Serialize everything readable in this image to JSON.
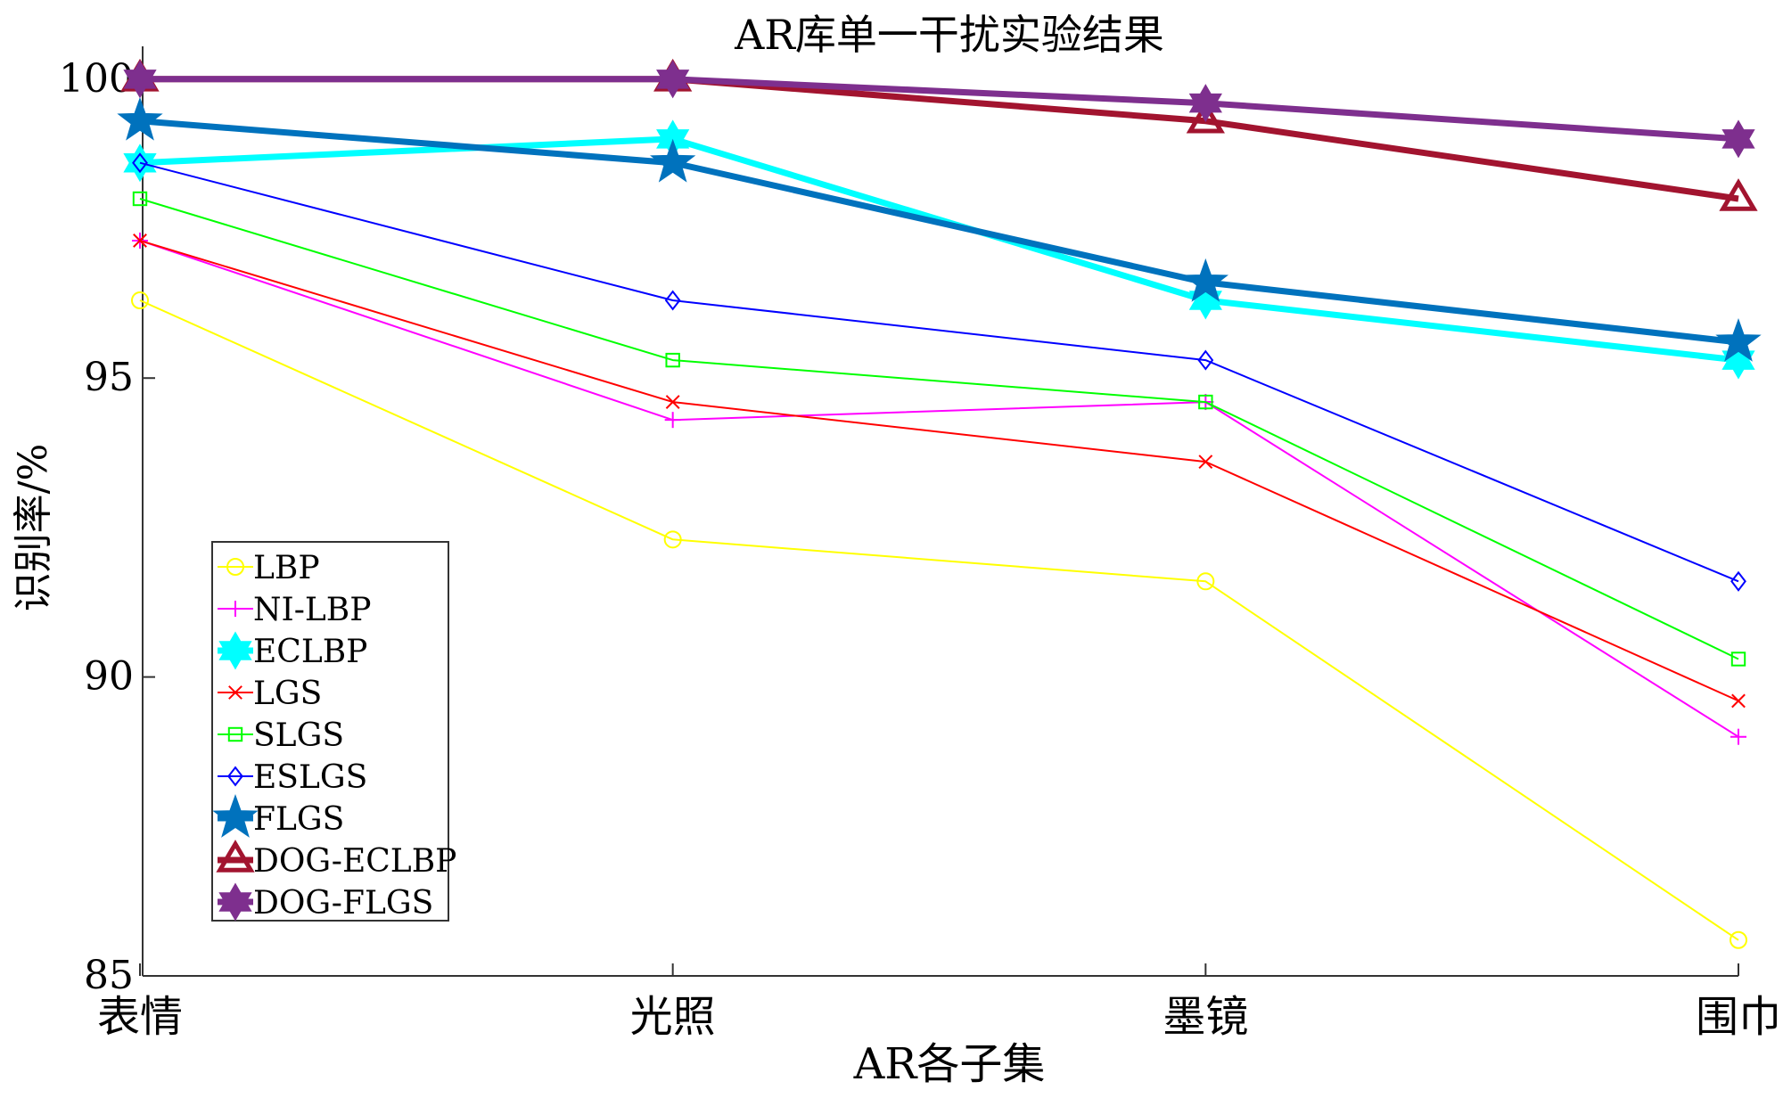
{
  "chart_data": {
    "type": "line",
    "title": "AR库单一干扰实验结果",
    "xlabel": "AR各子集",
    "ylabel": "识别率/%",
    "categories": [
      "表情",
      "光照",
      "墨镜",
      "围巾"
    ],
    "ylim": [
      85,
      100.4
    ],
    "yticks": [
      85,
      90,
      95,
      100
    ],
    "grid": false,
    "legend_position": "left",
    "series": [
      {
        "name": "LBP",
        "values": [
          96.3,
          92.3,
          91.6,
          85.6
        ],
        "color": "#ffff00",
        "marker": "circle",
        "weight": "thin"
      },
      {
        "name": "NI-LBP",
        "values": [
          97.3,
          94.3,
          94.6,
          89.0
        ],
        "color": "#ff00ff",
        "marker": "plus",
        "weight": "thin"
      },
      {
        "name": "ECLBP",
        "values": [
          98.6,
          99.0,
          96.3,
          95.3
        ],
        "color": "#00ffff",
        "marker": "hexagram",
        "weight": "thick"
      },
      {
        "name": "LGS",
        "values": [
          97.3,
          94.6,
          93.6,
          89.6
        ],
        "color": "#ff0000",
        "marker": "x",
        "weight": "thin"
      },
      {
        "name": "SLGS",
        "values": [
          98.0,
          95.3,
          94.6,
          90.3
        ],
        "color": "#00ff00",
        "marker": "square",
        "weight": "thin"
      },
      {
        "name": "ESLGS",
        "values": [
          98.6,
          96.3,
          95.3,
          91.6
        ],
        "color": "#0000ff",
        "marker": "diamond",
        "weight": "thin"
      },
      {
        "name": "FLGS",
        "values": [
          99.3,
          98.6,
          96.6,
          95.6
        ],
        "color": "#0072bd",
        "marker": "pentagram",
        "weight": "thick"
      },
      {
        "name": "DOG-ECLBP",
        "values": [
          100.0,
          100.0,
          99.3,
          98.0
        ],
        "color": "#a2142f",
        "marker": "triangle",
        "weight": "thick"
      },
      {
        "name": "DOG-FLGS",
        "values": [
          100.0,
          100.0,
          99.6,
          99.0
        ],
        "color": "#7e2f8e",
        "marker": "hexagram",
        "weight": "thick"
      }
    ]
  }
}
